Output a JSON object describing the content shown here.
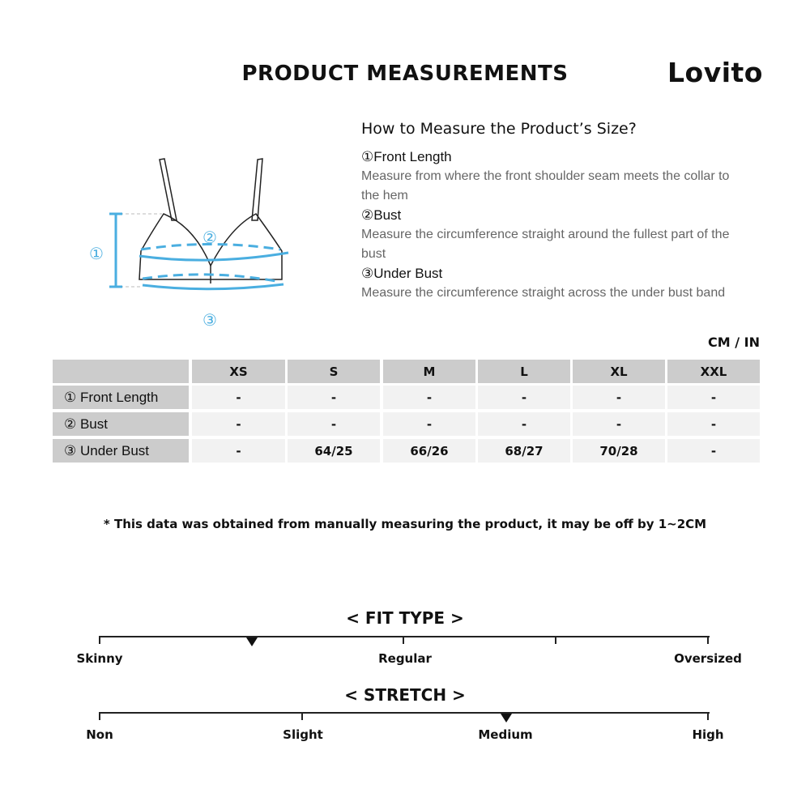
{
  "header": {
    "title": "PRODUCT MEASUREMENTS",
    "logo": "Lovito"
  },
  "diagram": {
    "markers": [
      "①",
      "②",
      "③"
    ],
    "accent": "#4aaee0"
  },
  "guide": {
    "heading": "How to Measure the Product’s Size?",
    "steps": [
      {
        "title": "①Front Length",
        "desc": "Measure from where the front shoulder seam meets the collar to the hem"
      },
      {
        "title": "②Bust",
        "desc": "Measure the circumference straight around the fullest part of the bust"
      },
      {
        "title": "③Under Bust",
        "desc": "Measure the circumference straight across the under bust band"
      }
    ]
  },
  "table": {
    "units": "CM / IN",
    "columns": [
      "XS",
      "S",
      "M",
      "L",
      "XL",
      "XXL"
    ],
    "rows": [
      {
        "label": "① Front Length",
        "values": [
          "-",
          "-",
          "-",
          "-",
          "-",
          "-"
        ]
      },
      {
        "label": "② Bust",
        "values": [
          "-",
          "-",
          "-",
          "-",
          "-",
          "-"
        ]
      },
      {
        "label": "③ Under Bust",
        "values": [
          "-",
          "64/25",
          "66/26",
          "68/27",
          "70/28",
          "-"
        ]
      }
    ]
  },
  "note": "* This data was obtained from manually measuring the product, it may be off by 1~2CM",
  "fit_type": {
    "title": "< FIT TYPE >",
    "labels": [
      "Skinny",
      "Regular",
      "Oversized"
    ],
    "level": 0.25
  },
  "stretch": {
    "title": "< STRETCH >",
    "labels": [
      "Non",
      "Slight",
      "Medium",
      "High"
    ],
    "selected": "Medium",
    "level": 0.667
  }
}
